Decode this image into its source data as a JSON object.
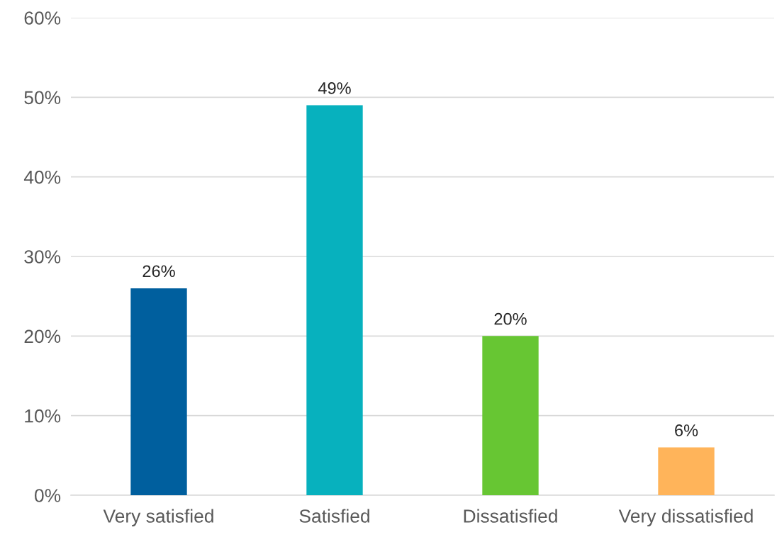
{
  "chart_data": {
    "type": "bar",
    "categories": [
      "Very satisfied",
      "Satisfied",
      "Dissatisfied",
      "Very dissatisfied"
    ],
    "values": [
      26,
      49,
      20,
      6
    ],
    "colors": [
      "#005f9e",
      "#07b1be",
      "#67c633",
      "#ffb45a"
    ],
    "ylim": [
      0,
      60
    ],
    "yticks": [
      {
        "value": 0,
        "label": "0%"
      },
      {
        "value": 10,
        "label": "10%"
      },
      {
        "value": 20,
        "label": "20%"
      },
      {
        "value": 30,
        "label": "30%"
      },
      {
        "value": 40,
        "label": "40%"
      },
      {
        "value": 50,
        "label": "50%"
      },
      {
        "value": 60,
        "label": "60%"
      }
    ],
    "value_labels": [
      "26%",
      "49%",
      "20%",
      "6%"
    ],
    "grid": "y"
  }
}
